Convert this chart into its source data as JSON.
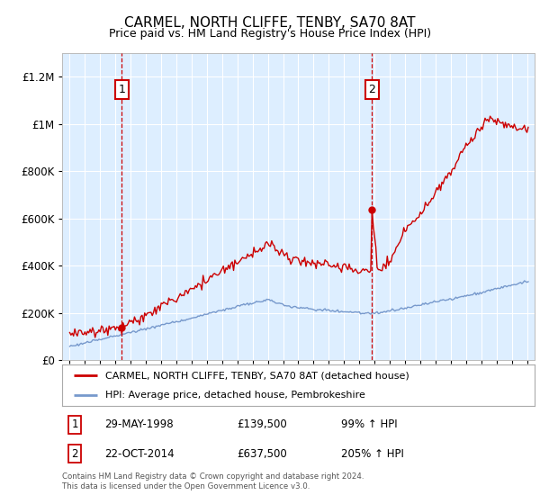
{
  "title": "CARMEL, NORTH CLIFFE, TENBY, SA70 8AT",
  "subtitle": "Price paid vs. HM Land Registry's House Price Index (HPI)",
  "legend_line1": "CARMEL, NORTH CLIFFE, TENBY, SA70 8AT (detached house)",
  "legend_line2": "HPI: Average price, detached house, Pembrokeshire",
  "ann1_label": "1",
  "ann1_date": "29-MAY-1998",
  "ann1_price": "£139,500",
  "ann1_hpi": "99% ↑ HPI",
  "ann1_year": 1998.42,
  "ann1_value": 139500,
  "ann2_label": "2",
  "ann2_date": "22-OCT-2014",
  "ann2_price": "£637,500",
  "ann2_hpi": "205% ↑ HPI",
  "ann2_year": 2014.83,
  "ann2_value": 637500,
  "footer": "Contains HM Land Registry data © Crown copyright and database right 2024.\nThis data is licensed under the Open Government Licence v3.0.",
  "red_color": "#cc0000",
  "blue_color": "#7799cc",
  "bg_color": "#ddeeff",
  "ylim_lo": 0,
  "ylim_hi": 1300000,
  "xlim_lo": 1994.5,
  "xlim_hi": 2025.5,
  "yticks": [
    0,
    200000,
    400000,
    600000,
    800000,
    1000000,
    1200000
  ],
  "xticks": [
    1995,
    1996,
    1997,
    1998,
    1999,
    2000,
    2001,
    2002,
    2003,
    2004,
    2005,
    2006,
    2007,
    2008,
    2009,
    2010,
    2011,
    2012,
    2013,
    2014,
    2015,
    2016,
    2017,
    2018,
    2019,
    2020,
    2021,
    2022,
    2023,
    2024,
    2025
  ]
}
